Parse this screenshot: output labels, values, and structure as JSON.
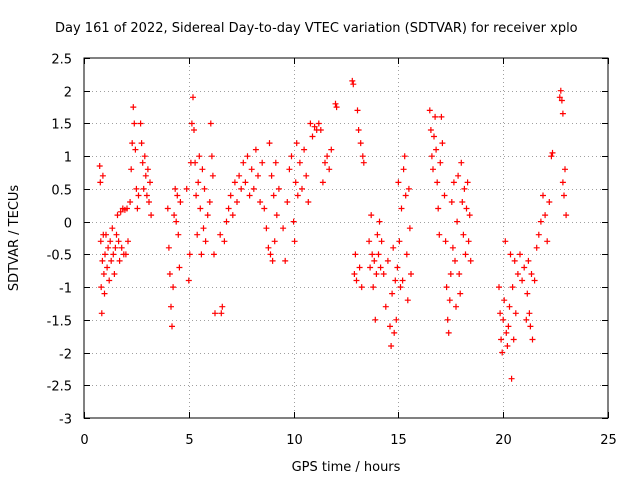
{
  "chart_data": {
    "type": "scatter",
    "title": "Day 161 of 2022, Sidereal Day-to-day VTEC variation (SDTVAR) for receiver xplo",
    "xlabel": "GPS time / hours",
    "ylabel": "SDTVAR / TECUs",
    "xlim": [
      0,
      25
    ],
    "ylim": [
      -3,
      2.5
    ],
    "xticks": [
      0,
      5,
      10,
      15,
      20,
      25
    ],
    "xtick_labels": [
      "0",
      "5",
      "10",
      "15",
      "20",
      "25"
    ],
    "yticks": [
      2.5,
      2,
      1.5,
      1,
      0.5,
      0,
      -0.5,
      -1,
      -1.5,
      -2,
      -2.5,
      -3
    ],
    "ytick_labels": [
      "2.5",
      "2",
      "1.5",
      "1",
      "0.5",
      "0",
      "-0.5",
      "-1",
      "-1.5",
      "-2",
      "-2.5",
      "-3"
    ],
    "grid": true,
    "marker": "+",
    "color": "#ff0000",
    "series": [
      {
        "name": "SDTVAR",
        "points": [
          [
            0.75,
            0.85
          ],
          [
            0.78,
            0.6
          ],
          [
            0.8,
            -0.3
          ],
          [
            0.82,
            -1.0
          ],
          [
            0.85,
            -1.4
          ],
          [
            0.88,
            -0.6
          ],
          [
            0.9,
            0.7
          ],
          [
            0.92,
            -0.2
          ],
          [
            0.95,
            -0.8
          ],
          [
            0.98,
            -1.1
          ],
          [
            1.0,
            -0.5
          ],
          [
            1.05,
            -0.2
          ],
          [
            1.1,
            -0.7
          ],
          [
            1.15,
            -0.4
          ],
          [
            1.2,
            -0.9
          ],
          [
            1.25,
            -0.3
          ],
          [
            1.3,
            -0.6
          ],
          [
            1.35,
            -0.1
          ],
          [
            1.4,
            -0.5
          ],
          [
            1.45,
            -0.8
          ],
          [
            1.5,
            -0.4
          ],
          [
            1.55,
            -0.2
          ],
          [
            1.6,
            0.1
          ],
          [
            1.65,
            -0.3
          ],
          [
            1.7,
            -0.6
          ],
          [
            1.75,
            0.15
          ],
          [
            1.8,
            -0.4
          ],
          [
            1.85,
            0.2
          ],
          [
            1.9,
            -0.5
          ],
          [
            1.95,
            0.18
          ],
          [
            2.0,
            -0.5
          ],
          [
            2.05,
            0.2
          ],
          [
            2.1,
            -0.3
          ],
          [
            2.2,
            0.3
          ],
          [
            2.25,
            0.8
          ],
          [
            2.3,
            1.2
          ],
          [
            2.35,
            1.75
          ],
          [
            2.4,
            1.5
          ],
          [
            2.45,
            1.1
          ],
          [
            2.5,
            0.5
          ],
          [
            2.55,
            0.2
          ],
          [
            2.6,
            0.4
          ],
          [
            2.7,
            1.5
          ],
          [
            2.75,
            1.2
          ],
          [
            2.8,
            0.9
          ],
          [
            2.85,
            0.5
          ],
          [
            2.9,
            1.0
          ],
          [
            2.95,
            0.7
          ],
          [
            3.0,
            0.4
          ],
          [
            3.05,
            0.8
          ],
          [
            3.1,
            0.3
          ],
          [
            3.15,
            0.6
          ],
          [
            3.2,
            0.1
          ],
          [
            4.0,
            0.2
          ],
          [
            4.05,
            -0.4
          ],
          [
            4.1,
            -0.8
          ],
          [
            4.15,
            -1.3
          ],
          [
            4.2,
            -1.6
          ],
          [
            4.25,
            -1.0
          ],
          [
            4.3,
            0.1
          ],
          [
            4.35,
            0.5
          ],
          [
            4.4,
            0.0
          ],
          [
            4.45,
            0.4
          ],
          [
            4.5,
            -0.2
          ],
          [
            4.55,
            -0.7
          ],
          [
            4.6,
            0.3
          ],
          [
            4.9,
            0.5
          ],
          [
            5.0,
            -0.9
          ],
          [
            5.05,
            -0.5
          ],
          [
            5.1,
            0.9
          ],
          [
            5.15,
            1.5
          ],
          [
            5.2,
            1.9
          ],
          [
            5.25,
            1.4
          ],
          [
            5.3,
            0.9
          ],
          [
            5.35,
            0.4
          ],
          [
            5.4,
            -0.2
          ],
          [
            5.45,
            0.6
          ],
          [
            5.5,
            1.0
          ],
          [
            5.55,
            0.2
          ],
          [
            5.6,
            -0.5
          ],
          [
            5.65,
            0.8
          ],
          [
            5.7,
            -0.1
          ],
          [
            5.75,
            0.5
          ],
          [
            5.8,
            -0.3
          ],
          [
            5.9,
            0.1
          ],
          [
            6.0,
            0.3
          ],
          [
            6.05,
            1.5
          ],
          [
            6.1,
            1.0
          ],
          [
            6.15,
            0.7
          ],
          [
            6.2,
            -0.5
          ],
          [
            6.25,
            -1.4
          ],
          [
            6.5,
            -0.2
          ],
          [
            6.55,
            -1.4
          ],
          [
            6.6,
            -1.3
          ],
          [
            6.7,
            -0.3
          ],
          [
            6.8,
            0.0
          ],
          [
            6.9,
            0.2
          ],
          [
            7.0,
            0.4
          ],
          [
            7.1,
            0.1
          ],
          [
            7.2,
            0.6
          ],
          [
            7.3,
            0.3
          ],
          [
            7.4,
            0.7
          ],
          [
            7.5,
            0.5
          ],
          [
            7.6,
            0.9
          ],
          [
            7.7,
            0.6
          ],
          [
            7.8,
            1.0
          ],
          [
            7.9,
            0.4
          ],
          [
            8.0,
            0.8
          ],
          [
            8.1,
            0.5
          ],
          [
            8.2,
            1.1
          ],
          [
            8.3,
            0.7
          ],
          [
            8.4,
            0.3
          ],
          [
            8.5,
            0.9
          ],
          [
            8.6,
            0.2
          ],
          [
            8.7,
            -0.1
          ],
          [
            8.8,
            -0.4
          ],
          [
            8.85,
            1.2
          ],
          [
            8.9,
            -0.5
          ],
          [
            8.95,
            0.7
          ],
          [
            9.0,
            -0.6
          ],
          [
            9.05,
            0.4
          ],
          [
            9.1,
            -0.3
          ],
          [
            9.15,
            0.9
          ],
          [
            9.2,
            0.1
          ],
          [
            9.3,
            0.5
          ],
          [
            9.5,
            -0.1
          ],
          [
            9.6,
            -0.6
          ],
          [
            9.7,
            0.3
          ],
          [
            9.8,
            0.8
          ],
          [
            9.9,
            1.0
          ],
          [
            10.0,
            0.0
          ],
          [
            10.05,
            -0.3
          ],
          [
            10.1,
            0.6
          ],
          [
            10.15,
            1.2
          ],
          [
            10.2,
            0.4
          ],
          [
            10.3,
            0.9
          ],
          [
            10.4,
            0.5
          ],
          [
            10.5,
            1.1
          ],
          [
            10.6,
            0.7
          ],
          [
            10.7,
            0.3
          ],
          [
            10.8,
            1.5
          ],
          [
            10.9,
            1.3
          ],
          [
            11.0,
            1.45
          ],
          [
            11.1,
            1.4
          ],
          [
            11.2,
            1.5
          ],
          [
            11.3,
            1.4
          ],
          [
            11.4,
            0.6
          ],
          [
            11.5,
            0.9
          ],
          [
            11.6,
            1.0
          ],
          [
            11.7,
            0.8
          ],
          [
            11.8,
            1.1
          ],
          [
            12.0,
            1.8
          ],
          [
            12.05,
            1.75
          ],
          [
            12.8,
            2.15
          ],
          [
            12.85,
            2.1
          ],
          [
            12.9,
            -0.8
          ],
          [
            12.95,
            -0.5
          ],
          [
            13.0,
            -0.9
          ],
          [
            13.05,
            1.7
          ],
          [
            13.1,
            1.4
          ],
          [
            13.15,
            -0.7
          ],
          [
            13.2,
            1.2
          ],
          [
            13.25,
            -1.0
          ],
          [
            13.3,
            1.0
          ],
          [
            13.35,
            0.9
          ],
          [
            13.6,
            -0.3
          ],
          [
            13.65,
            -0.7
          ],
          [
            13.7,
            0.1
          ],
          [
            13.75,
            -0.5
          ],
          [
            13.8,
            -1.0
          ],
          [
            13.85,
            -0.6
          ],
          [
            13.9,
            -1.5
          ],
          [
            13.95,
            -0.8
          ],
          [
            14.0,
            -0.2
          ],
          [
            14.05,
            -0.5
          ],
          [
            14.1,
            0.0
          ],
          [
            14.15,
            -0.7
          ],
          [
            14.2,
            -0.3
          ],
          [
            14.3,
            -0.8
          ],
          [
            14.4,
            -1.3
          ],
          [
            14.5,
            -0.6
          ],
          [
            14.6,
            -1.6
          ],
          [
            14.65,
            -1.9
          ],
          [
            14.7,
            -1.1
          ],
          [
            14.75,
            -0.4
          ],
          [
            14.8,
            -1.7
          ],
          [
            14.85,
            -0.9
          ],
          [
            14.9,
            -1.5
          ],
          [
            14.95,
            -0.7
          ],
          [
            15.0,
            0.6
          ],
          [
            15.05,
            -0.3
          ],
          [
            15.1,
            -1.0
          ],
          [
            15.15,
            0.2
          ],
          [
            15.2,
            -0.9
          ],
          [
            15.25,
            0.8
          ],
          [
            15.3,
            1.0
          ],
          [
            15.35,
            0.4
          ],
          [
            15.4,
            -0.5
          ],
          [
            15.45,
            -1.2
          ],
          [
            15.5,
            0.5
          ],
          [
            15.55,
            -0.1
          ],
          [
            15.6,
            -0.8
          ],
          [
            16.5,
            1.7
          ],
          [
            16.55,
            1.4
          ],
          [
            16.6,
            1.0
          ],
          [
            16.65,
            0.8
          ],
          [
            16.7,
            1.3
          ],
          [
            16.75,
            1.6
          ],
          [
            16.8,
            1.1
          ],
          [
            16.85,
            0.6
          ],
          [
            16.9,
            0.2
          ],
          [
            16.95,
            -0.2
          ],
          [
            17.0,
            0.9
          ],
          [
            17.05,
            1.6
          ],
          [
            17.1,
            1.2
          ],
          [
            17.2,
            0.4
          ],
          [
            17.25,
            -0.3
          ],
          [
            17.3,
            -1.0
          ],
          [
            17.35,
            -1.5
          ],
          [
            17.4,
            -1.7
          ],
          [
            17.45,
            -1.2
          ],
          [
            17.5,
            -0.8
          ],
          [
            17.55,
            0.3
          ],
          [
            17.6,
            -0.4
          ],
          [
            17.65,
            0.6
          ],
          [
            17.7,
            -0.6
          ],
          [
            17.75,
            -1.3
          ],
          [
            17.8,
            0.0
          ],
          [
            17.85,
            0.7
          ],
          [
            17.9,
            -0.8
          ],
          [
            17.95,
            -1.1
          ],
          [
            18.0,
            0.9
          ],
          [
            18.05,
            0.3
          ],
          [
            18.1,
            -0.2
          ],
          [
            18.15,
            0.5
          ],
          [
            18.2,
            -0.5
          ],
          [
            18.25,
            0.2
          ],
          [
            18.3,
            0.6
          ],
          [
            18.35,
            -0.3
          ],
          [
            18.4,
            0.1
          ],
          [
            18.45,
            -0.6
          ],
          [
            19.8,
            -1.0
          ],
          [
            19.85,
            -1.4
          ],
          [
            19.9,
            -1.8
          ],
          [
            19.95,
            -2.0
          ],
          [
            20.0,
            -1.5
          ],
          [
            20.05,
            -1.2
          ],
          [
            20.1,
            -0.3
          ],
          [
            20.15,
            -1.7
          ],
          [
            20.2,
            -1.9
          ],
          [
            20.25,
            -1.6
          ],
          [
            20.3,
            -1.3
          ],
          [
            20.35,
            -0.5
          ],
          [
            20.4,
            -2.4
          ],
          [
            20.45,
            -1.0
          ],
          [
            20.5,
            -1.8
          ],
          [
            20.55,
            -0.6
          ],
          [
            20.6,
            -1.4
          ],
          [
            20.7,
            -0.8
          ],
          [
            20.8,
            -0.5
          ],
          [
            20.9,
            -0.9
          ],
          [
            21.0,
            -0.7
          ],
          [
            21.1,
            -1.5
          ],
          [
            21.15,
            -1.1
          ],
          [
            21.2,
            -0.6
          ],
          [
            21.25,
            -1.4
          ],
          [
            21.3,
            -1.6
          ],
          [
            21.35,
            -0.8
          ],
          [
            21.4,
            -1.8
          ],
          [
            21.5,
            -0.9
          ],
          [
            21.6,
            -0.4
          ],
          [
            21.7,
            -0.2
          ],
          [
            21.8,
            0.0
          ],
          [
            21.9,
            0.4
          ],
          [
            22.0,
            0.1
          ],
          [
            22.1,
            -0.3
          ],
          [
            22.2,
            0.3
          ],
          [
            22.3,
            1.0
          ],
          [
            22.35,
            1.05
          ],
          [
            22.7,
            1.9
          ],
          [
            22.75,
            2.0
          ],
          [
            22.8,
            1.85
          ],
          [
            22.85,
            1.65
          ],
          [
            22.9,
            0.4
          ],
          [
            22.95,
            0.8
          ],
          [
            23.0,
            0.1
          ],
          [
            22.85,
            0.6
          ]
        ]
      }
    ]
  }
}
